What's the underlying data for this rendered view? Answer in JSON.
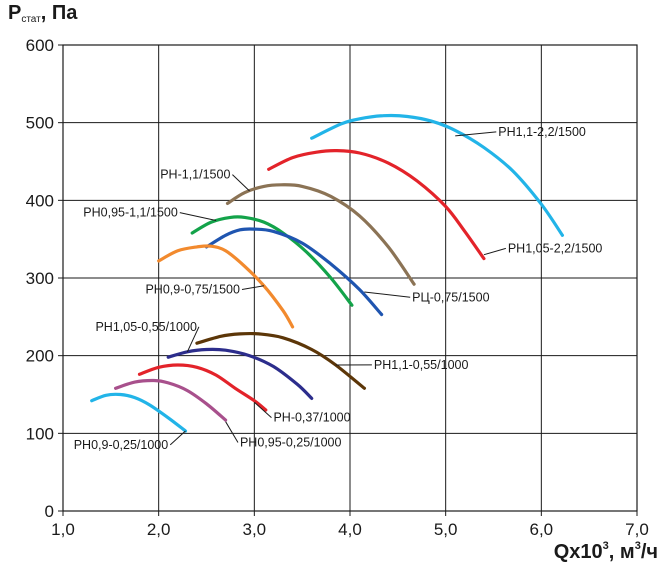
{
  "chart_data": {
    "type": "line",
    "ylabel_main": "P",
    "ylabel_sub": "стат",
    "ylabel_unit": ", Па",
    "xlabel_main": "Qx10",
    "xlabel_sup1": "3",
    "xlabel_mid": ", м",
    "xlabel_sup2": "3",
    "xlabel_end": "/ч",
    "xlim": [
      1.0,
      7.0
    ],
    "ylim": [
      0,
      600
    ],
    "x_ticks": [
      1.0,
      2.0,
      3.0,
      4.0,
      5.0,
      6.0,
      7.0
    ],
    "x_tick_labels": [
      "1,0",
      "2,0",
      "3,0",
      "4,0",
      "5,0",
      "6,0",
      "7,0"
    ],
    "y_ticks": [
      0,
      100,
      200,
      300,
      400,
      500,
      600
    ],
    "y_tick_labels": [
      "0",
      "100",
      "200",
      "300",
      "400",
      "500",
      "600"
    ],
    "grid": true,
    "series": [
      {
        "name": "РН1,1-2,2/1500",
        "color": "#22b4e8",
        "x": [
          3.6,
          3.9,
          4.1,
          4.35,
          4.6,
          4.85,
          5.1,
          5.4,
          5.7,
          6.0,
          6.22
        ],
        "y": [
          480,
          498,
          505,
          509,
          508,
          502,
          490,
          468,
          438,
          395,
          355
        ]
      },
      {
        "name": "РН1,05-2,2/1500",
        "color": "#e3232a",
        "x": [
          3.15,
          3.4,
          3.65,
          3.85,
          4.1,
          4.4,
          4.7,
          5.0,
          5.2,
          5.4
        ],
        "y": [
          440,
          455,
          462,
          464,
          461,
          448,
          425,
          392,
          360,
          325
        ]
      },
      {
        "name": "РН-1,1/1500",
        "color": "#8b7355",
        "x": [
          2.72,
          2.9,
          3.1,
          3.28,
          3.5,
          3.8,
          4.1,
          4.4,
          4.67
        ],
        "y": [
          396,
          410,
          418,
          420,
          418,
          405,
          380,
          340,
          292
        ]
      },
      {
        "name": "РН0,95-1,1/1500",
        "color": "#13a34a",
        "x": [
          2.35,
          2.55,
          2.75,
          2.9,
          3.1,
          3.3,
          3.55,
          3.8,
          4.02
        ],
        "y": [
          358,
          372,
          378,
          378,
          372,
          358,
          333,
          300,
          265
        ]
      },
      {
        "name": "РЦ-0,75/1500",
        "color": "#1f55b0",
        "x": [
          2.5,
          2.7,
          2.85,
          3.0,
          3.2,
          3.5,
          3.8,
          4.1,
          4.33
        ],
        "y": [
          340,
          355,
          362,
          363,
          360,
          345,
          318,
          285,
          253
        ]
      },
      {
        "name": "РН0,9-0,75/1500",
        "color": "#f28a2e",
        "x": [
          2.0,
          2.2,
          2.4,
          2.55,
          2.7,
          2.9,
          3.1,
          3.3,
          3.4
        ],
        "y": [
          322,
          335,
          340,
          341,
          335,
          315,
          290,
          258,
          237
        ]
      },
      {
        "name": "РН1,1-0,55/1000",
        "color": "#5c3608",
        "x": [
          2.4,
          2.65,
          2.85,
          3.05,
          3.3,
          3.6,
          3.85,
          4.15
        ],
        "y": [
          216,
          225,
          228,
          228,
          223,
          208,
          188,
          158
        ]
      },
      {
        "name": "РН1,05-0,55/1000",
        "color": "#2c2d8c",
        "x": [
          2.1,
          2.3,
          2.5,
          2.7,
          2.95,
          3.2,
          3.45,
          3.6
        ],
        "y": [
          198,
          205,
          208,
          207,
          200,
          186,
          163,
          145
        ]
      },
      {
        "name": "РН-0,37/1000",
        "color": "#e3232a",
        "x": [
          1.8,
          2.0,
          2.2,
          2.4,
          2.6,
          2.8,
          3.0,
          3.12
        ],
        "y": [
          176,
          185,
          188,
          185,
          175,
          158,
          142,
          130
        ]
      },
      {
        "name": "РН0,95-0,25/1000",
        "color": "#a8508c",
        "x": [
          1.55,
          1.75,
          1.95,
          2.1,
          2.3,
          2.5,
          2.7
        ],
        "y": [
          158,
          166,
          168,
          165,
          155,
          138,
          117
        ]
      },
      {
        "name": "РН0,9-0,25/1000",
        "color": "#22b4e8",
        "x": [
          1.3,
          1.45,
          1.6,
          1.75,
          1.9,
          2.1,
          2.28
        ],
        "y": [
          142,
          149,
          150,
          146,
          137,
          120,
          103
        ]
      }
    ],
    "labels": [
      {
        "series": 0,
        "text": "РН1,1-2,2/1500",
        "tx": 5.55,
        "ty": 483,
        "ax": 5.1,
        "ay": 483,
        "side": "right"
      },
      {
        "series": 1,
        "text": "РН1,05-2,2/1500",
        "tx": 5.65,
        "ty": 333,
        "ax": 5.4,
        "ay": 330,
        "side": "right"
      },
      {
        "series": 2,
        "text": "РН-1,1/1500",
        "tx": 2.75,
        "ty": 428,
        "ax": 2.95,
        "ay": 412,
        "side": "left"
      },
      {
        "series": 3,
        "text": "РН0,95-1,1/1500",
        "tx": 2.2,
        "ty": 379,
        "ax": 2.6,
        "ay": 374,
        "side": "left"
      },
      {
        "series": 4,
        "text": "РЦ-0,75/1500",
        "tx": 4.65,
        "ty": 270,
        "ax": 4.15,
        "ay": 282,
        "side": "right"
      },
      {
        "series": 5,
        "text": "РН0,9-0,75/1500",
        "tx": 2.85,
        "ty": 280,
        "ax": 3.1,
        "ay": 290,
        "side": "left"
      },
      {
        "series": 6,
        "text": "РН1,1-0,55/1000",
        "tx": 4.25,
        "ty": 183,
        "ax": 3.85,
        "ay": 188,
        "side": "right"
      },
      {
        "series": 7,
        "text": "РН1,05-0,55/1000",
        "tx": 2.4,
        "ty": 232,
        "ax": 2.3,
        "ay": 205,
        "side": "left"
      },
      {
        "series": 8,
        "text": "РН-0,37/1000",
        "tx": 3.2,
        "ty": 115,
        "ax": 3.0,
        "ay": 140,
        "side": "right"
      },
      {
        "series": 9,
        "text": "РН0,95-0,25/1000",
        "tx": 2.85,
        "ty": 83,
        "ax": 2.7,
        "ay": 115,
        "side": "right"
      },
      {
        "series": 10,
        "text": "РН0,9-0,25/1000",
        "tx": 2.1,
        "ty": 80,
        "ax": 2.28,
        "ay": 103,
        "side": "left"
      }
    ]
  }
}
